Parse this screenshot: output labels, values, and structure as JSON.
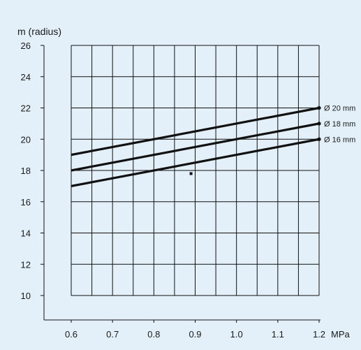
{
  "chart_data": {
    "type": "line",
    "ylabel": "m (radius)",
    "xunit": "MPa",
    "xlim": [
      0.5,
      1.2
    ],
    "ylim": [
      8,
      26
    ],
    "x_ticks": [
      "0.6",
      "0.7",
      "0.8",
      "0.9",
      "1.0",
      "1.1",
      "1.2"
    ],
    "y_ticks": [
      "10",
      "12",
      "14",
      "16",
      "18",
      "20",
      "22",
      "24",
      "26"
    ],
    "grid": true,
    "series": [
      {
        "name": "Ø 20 mm",
        "x": [
          0.6,
          1.2
        ],
        "y": [
          19,
          22
        ]
      },
      {
        "name": "Ø 18 mm",
        "x": [
          0.6,
          1.2
        ],
        "y": [
          18,
          21
        ]
      },
      {
        "name": "Ø 16 mm",
        "x": [
          0.6,
          1.2
        ],
        "y": [
          17,
          20
        ]
      }
    ],
    "marker_point": {
      "x": 0.89,
      "y": 17.8
    }
  }
}
